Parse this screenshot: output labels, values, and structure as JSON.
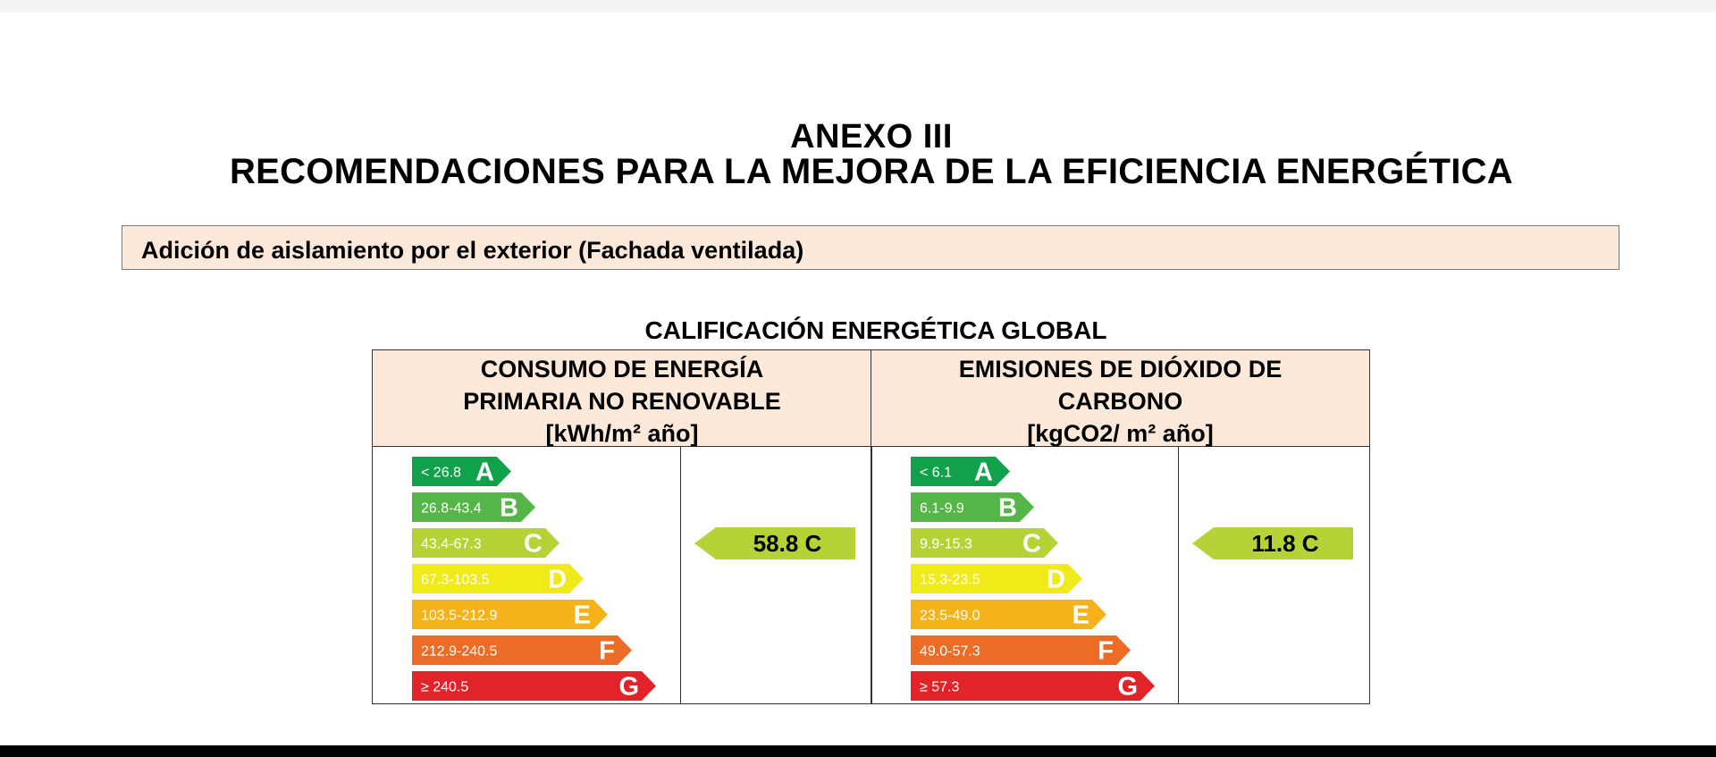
{
  "document": {
    "annex_title": "ANEXO III",
    "main_title": "RECOMENDACIONES PARA LA MEJORA DE LA EFICIENCIA ENERGÉTICA",
    "recommendation": "Adición de aislamiento por el exterior (Fachada ventilada)",
    "rating_title": "CALIFICACIÓN ENERGÉTICA GLOBAL"
  },
  "consumption": {
    "header_line1": "CONSUMO DE ENERGÍA",
    "header_line2": "PRIMARIA NO RENOVABLE",
    "unit": "[kWh/m² año]",
    "scale": [
      {
        "range": "< 26.8",
        "letter": "A",
        "color": "#12a14b"
      },
      {
        "range": "26.8-43.4",
        "letter": "B",
        "color": "#53b646"
      },
      {
        "range": "43.4-67.3",
        "letter": "C",
        "color": "#b5d336"
      },
      {
        "range": "67.3-103.5",
        "letter": "D",
        "color": "#f1ea1b"
      },
      {
        "range": "103.5-212.9",
        "letter": "E",
        "color": "#f6b21a"
      },
      {
        "range": "212.9-240.5",
        "letter": "F",
        "color": "#ec6b25"
      },
      {
        "range": "≥ 240.5",
        "letter": "G",
        "color": "#e2232a"
      }
    ],
    "result": "58.8 C",
    "result_color": "#b5d336"
  },
  "emissions": {
    "header_line1": "EMISIONES DE DIÓXIDO DE",
    "header_line2": "CARBONO",
    "unit": "[kgCO2/ m² año]",
    "scale": [
      {
        "range": "< 6.1",
        "letter": "A",
        "color": "#12a14b"
      },
      {
        "range": "6.1-9.9",
        "letter": "B",
        "color": "#53b646"
      },
      {
        "range": "9.9-15.3",
        "letter": "C",
        "color": "#b5d336"
      },
      {
        "range": "15.3-23.5",
        "letter": "D",
        "color": "#f1ea1b"
      },
      {
        "range": "23.5-49.0",
        "letter": "E",
        "color": "#f6b21a"
      },
      {
        "range": "49.0-57.3",
        "letter": "F",
        "color": "#ec6b25"
      },
      {
        "range": "≥ 57.3",
        "letter": "G",
        "color": "#e2232a"
      }
    ],
    "result": "11.8 C",
    "result_color": "#b5d336"
  }
}
